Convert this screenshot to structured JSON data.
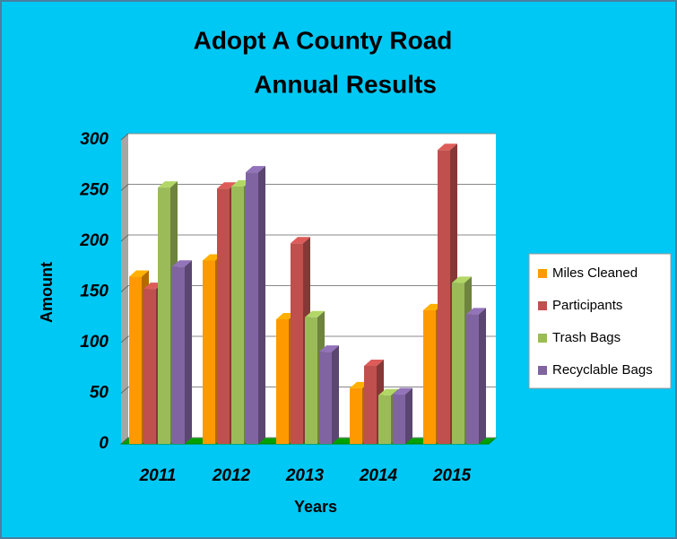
{
  "chart_data": {
    "type": "bar3d",
    "title": [
      "Adopt A County Road",
      "Annual Results"
    ],
    "x_label": "Years",
    "y_label": "Amount",
    "categories": [
      "2011",
      "2012",
      "2013",
      "2014",
      "2015"
    ],
    "series": [
      {
        "name": "Miles Cleaned",
        "color": "#ff9900",
        "values": [
          165,
          181,
          123,
          55,
          132
        ]
      },
      {
        "name": "Participants",
        "color": "#c0504d",
        "values": [
          153,
          252,
          198,
          77,
          290
        ]
      },
      {
        "name": "Trash Bags",
        "color": "#9bbb59",
        "values": [
          253,
          254,
          125,
          48,
          159
        ]
      },
      {
        "name": "Recyclable Bags",
        "color": "#8064a2",
        "values": [
          175,
          268,
          91,
          49,
          128
        ]
      }
    ],
    "ylim": [
      0,
      300
    ],
    "yticks": [
      0,
      50,
      100,
      150,
      200,
      250,
      300
    ],
    "grid": true,
    "legend": "right"
  }
}
